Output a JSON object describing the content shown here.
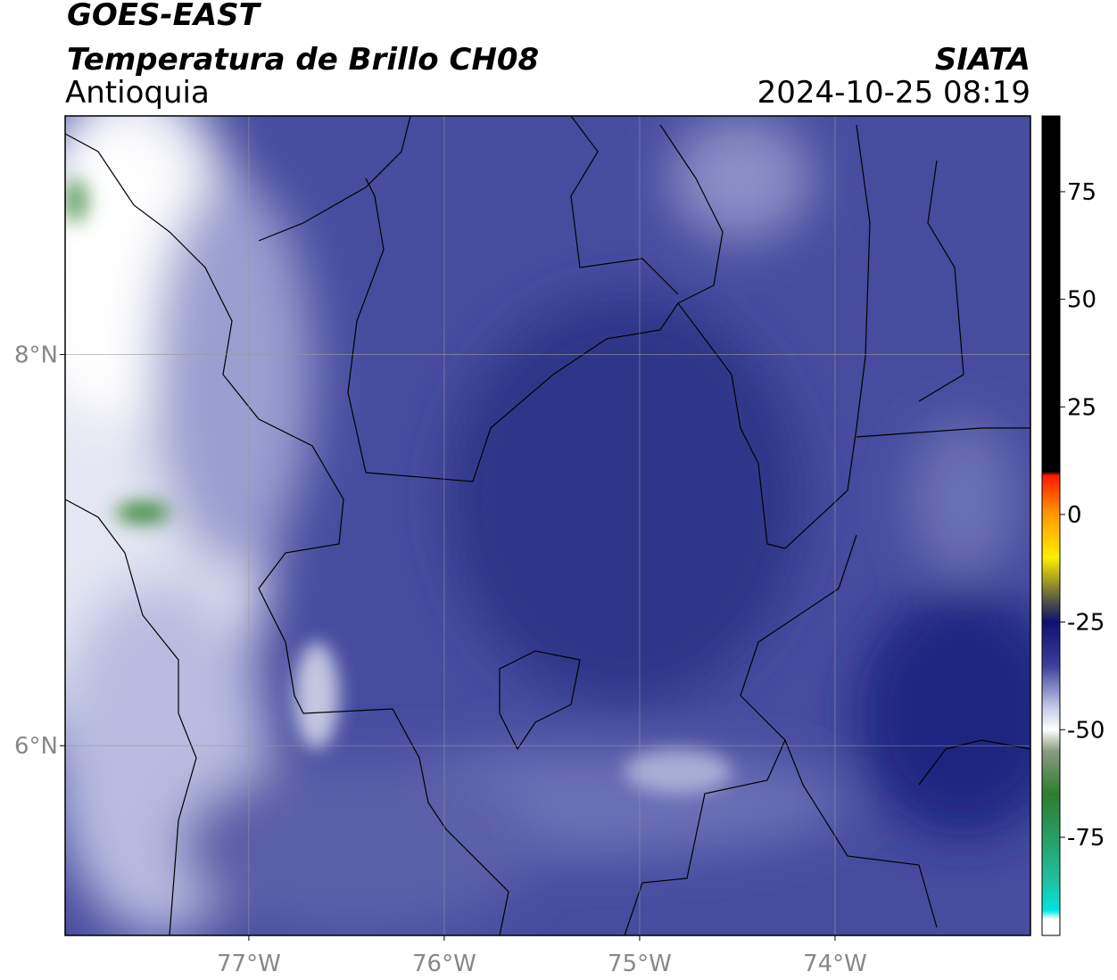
{
  "header": {
    "satellite": "GOES-EAST",
    "product": "Temperatura de Brillo CH08",
    "region": "Antioquia",
    "source": "SIATA",
    "datetime": "2024-10-25 08:19"
  },
  "map": {
    "xlim": [
      -77.94,
      -73.0
    ],
    "ylim": [
      5.03,
      9.22
    ],
    "xticks": [
      {
        "value": -77,
        "label": "77°W"
      },
      {
        "value": -76,
        "label": "76°W"
      },
      {
        "value": -75,
        "label": "75°W"
      },
      {
        "value": -74,
        "label": "74°W"
      }
    ],
    "yticks": [
      {
        "value": 8,
        "label": "8°N"
      },
      {
        "value": 6,
        "label": "6°N"
      }
    ],
    "grid": true
  },
  "colorbar": {
    "lim": [
      -97.8,
      92.6
    ],
    "ticks": [
      75,
      50,
      25,
      0,
      -25,
      -50,
      -75
    ],
    "colors": [
      {
        "value": 92.6,
        "color": "#000000"
      },
      {
        "value": 10,
        "color": "#000000"
      },
      {
        "value": 9,
        "color": "#ff1a00"
      },
      {
        "value": 0,
        "color": "#ff9900"
      },
      {
        "value": -10,
        "color": "#ffee00"
      },
      {
        "value": -20,
        "color": "#555544"
      },
      {
        "value": -25,
        "color": "#101070"
      },
      {
        "value": -35,
        "color": "#3a3f9a"
      },
      {
        "value": -45,
        "color": "#c8cce6"
      },
      {
        "value": -50,
        "color": "#ffffff"
      },
      {
        "value": -55,
        "color": "#8a9a80"
      },
      {
        "value": -65,
        "color": "#2e7d2e"
      },
      {
        "value": -85,
        "color": "#20c0a0"
      },
      {
        "value": -92,
        "color": "#00e5e0"
      },
      {
        "value": -94,
        "color": "#ffffff"
      }
    ]
  }
}
